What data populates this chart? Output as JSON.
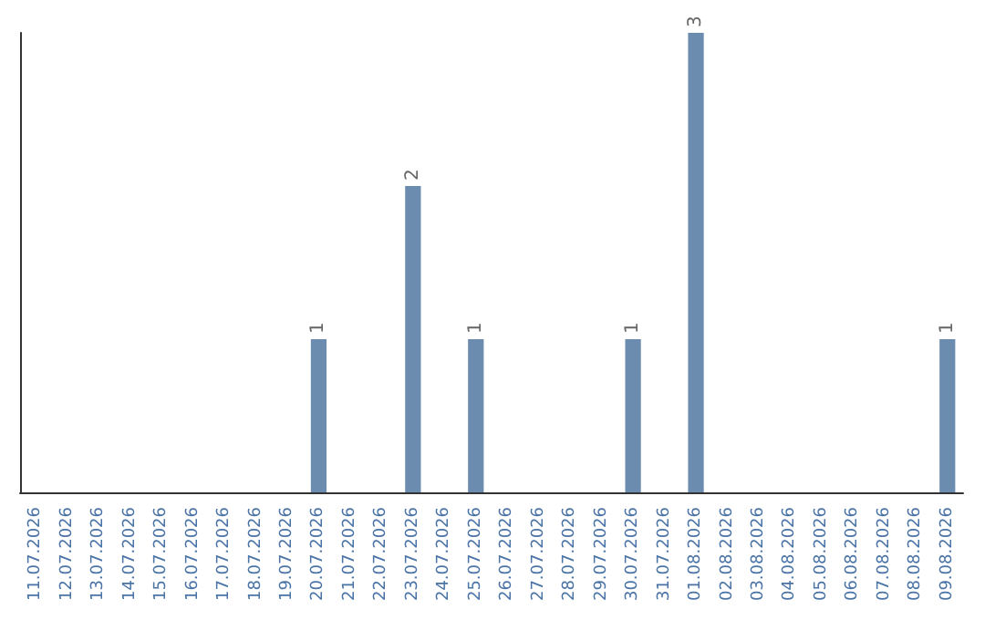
{
  "chart_data": {
    "type": "bar",
    "categories": [
      "11.07.2026",
      "12.07.2026",
      "13.07.2026",
      "14.07.2026",
      "15.07.2026",
      "16.07.2026",
      "17.07.2026",
      "18.07.2026",
      "19.07.2026",
      "20.07.2026",
      "21.07.2026",
      "22.07.2026",
      "23.07.2026",
      "24.07.2026",
      "25.07.2026",
      "26.07.2026",
      "27.07.2026",
      "28.07.2026",
      "29.07.2026",
      "30.07.2026",
      "31.07.2026",
      "01.08.2026",
      "02.08.2026",
      "03.08.2026",
      "04.08.2026",
      "05.08.2026",
      "06.08.2026",
      "07.08.2026",
      "08.08.2026",
      "09.08.2026"
    ],
    "values": [
      0,
      0,
      0,
      0,
      0,
      0,
      0,
      0,
      0,
      1,
      0,
      0,
      2,
      0,
      1,
      0,
      0,
      0,
      0,
      1,
      0,
      3,
      0,
      0,
      0,
      0,
      0,
      0,
      0,
      1
    ],
    "value_labels": [
      null,
      null,
      null,
      null,
      null,
      null,
      null,
      null,
      null,
      "1",
      null,
      null,
      "2",
      null,
      "1",
      null,
      null,
      null,
      null,
      "1",
      null,
      "3",
      null,
      null,
      null,
      null,
      null,
      null,
      null,
      "1"
    ],
    "color": "#6b8cae",
    "ylim": [
      0,
      3
    ],
    "tick_labels": "x"
  }
}
